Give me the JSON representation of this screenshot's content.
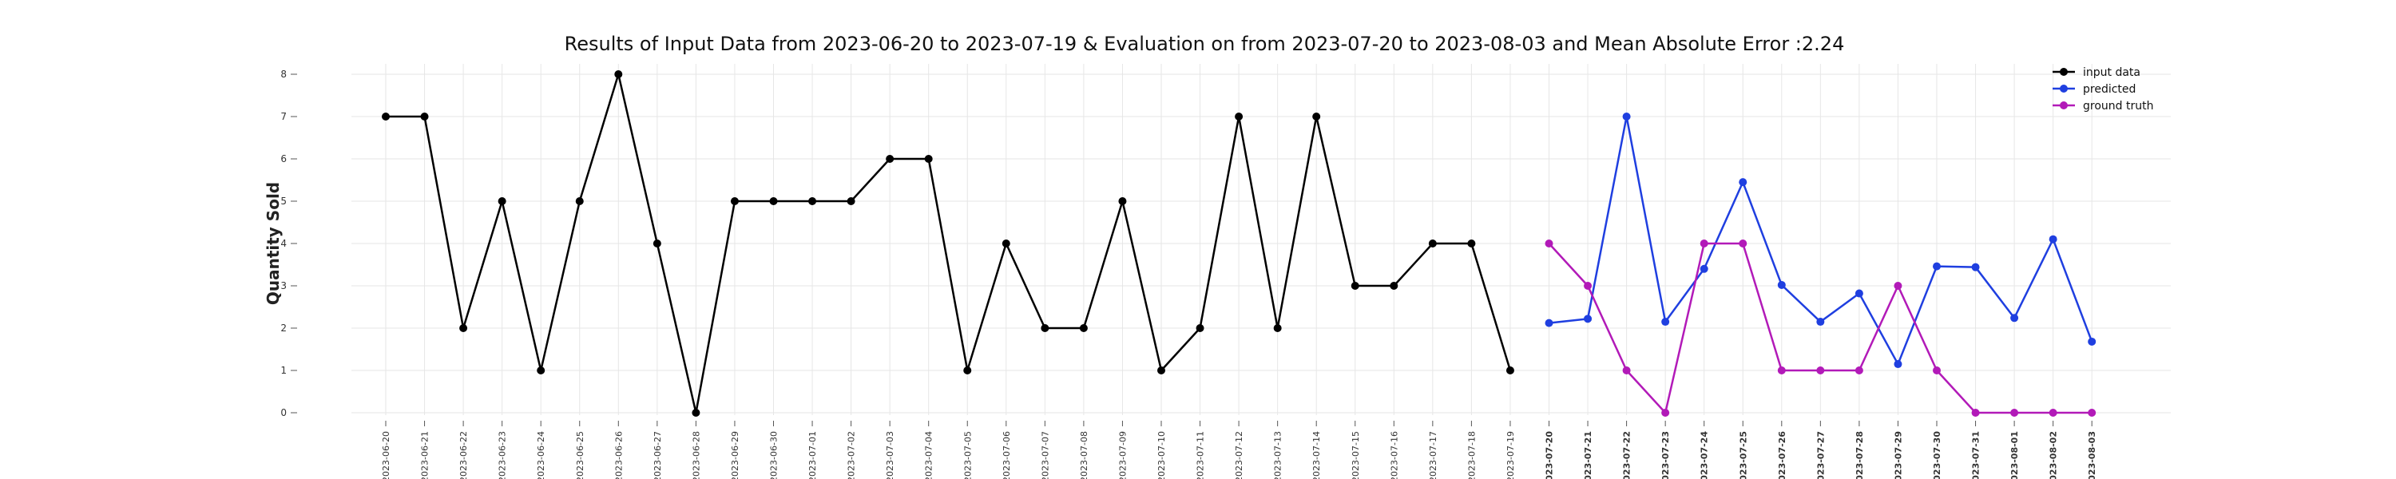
{
  "chart_data": {
    "type": "line",
    "title": "Results of Input Data from 2023-06-20 to 2023-07-19 & Evaluation on from 2023-07-20 to 2023-08-03 and Mean Absolute Error  :2.24",
    "xlabel": "",
    "ylabel": "Quantity Sold",
    "ylim": [
      0,
      8
    ],
    "yticks": [
      "0",
      "1",
      "2",
      "3",
      "4",
      "5",
      "6",
      "7",
      "8"
    ],
    "grid": true,
    "legend_position": "top-right",
    "x_labels": [
      "2023-06-20",
      "2023-06-21",
      "2023-06-22",
      "2023-06-23",
      "2023-06-24",
      "2023-06-25",
      "2023-06-26",
      "2023-06-27",
      "2023-06-28",
      "2023-06-29",
      "2023-06-30",
      "2023-07-01",
      "2023-07-02",
      "2023-07-03",
      "2023-07-04",
      "2023-07-05",
      "2023-07-06",
      "2023-07-07",
      "2023-07-08",
      "2023-07-09",
      "2023-07-10",
      "2023-07-11",
      "2023-07-12",
      "2023-07-13",
      "2023-07-14",
      "2023-07-15",
      "2023-07-16",
      "2023-07-17",
      "2023-07-18",
      "2023-07-19",
      "2023-07-20",
      "2023-07-21",
      "2023-07-22",
      "2023-07-23",
      "2023-07-24",
      "2023-07-25",
      "2023-07-26",
      "2023-07-27",
      "2023-07-28",
      "2023-07-29",
      "2023-07-30",
      "2023-07-31",
      "2023-08-01",
      "2023-08-02",
      "2023-08-03"
    ],
    "bold_from": "2023-07-20",
    "series": [
      {
        "name": "input data",
        "color": "#000000",
        "x": [
          "2023-06-20",
          "2023-06-21",
          "2023-06-22",
          "2023-06-23",
          "2023-06-24",
          "2023-06-25",
          "2023-06-26",
          "2023-06-27",
          "2023-06-28",
          "2023-06-29",
          "2023-06-30",
          "2023-07-01",
          "2023-07-02",
          "2023-07-03",
          "2023-07-04",
          "2023-07-05",
          "2023-07-06",
          "2023-07-07",
          "2023-07-08",
          "2023-07-09",
          "2023-07-10",
          "2023-07-11",
          "2023-07-12",
          "2023-07-13",
          "2023-07-14",
          "2023-07-15",
          "2023-07-16",
          "2023-07-17",
          "2023-07-18",
          "2023-07-19"
        ],
        "values": [
          7,
          7,
          2,
          5,
          1,
          5,
          8,
          4,
          0,
          5,
          5,
          5,
          5,
          6,
          6,
          1,
          4,
          2,
          2,
          5,
          1,
          2,
          7,
          2,
          7,
          3,
          3,
          4,
          4,
          1
        ]
      },
      {
        "name": "predicted",
        "color": "#1f3fe0",
        "x": [
          "2023-07-20",
          "2023-07-21",
          "2023-07-22",
          "2023-07-23",
          "2023-07-24",
          "2023-07-25",
          "2023-07-26",
          "2023-07-27",
          "2023-07-28",
          "2023-07-29",
          "2023-07-30",
          "2023-07-31",
          "2023-08-01",
          "2023-08-02",
          "2023-08-03"
        ],
        "values": [
          2.12,
          2.22,
          7.0,
          2.15,
          3.4,
          5.45,
          3.02,
          2.15,
          2.82,
          1.15,
          3.46,
          3.44,
          2.24,
          4.1,
          1.68
        ]
      },
      {
        "name": "ground truth",
        "color": "#b21ab8",
        "x": [
          "2023-07-20",
          "2023-07-21",
          "2023-07-22",
          "2023-07-23",
          "2023-07-24",
          "2023-07-25",
          "2023-07-26",
          "2023-07-27",
          "2023-07-28",
          "2023-07-29",
          "2023-07-30",
          "2023-07-31",
          "2023-08-01",
          "2023-08-02",
          "2023-08-03"
        ],
        "values": [
          4,
          3,
          1,
          0,
          4,
          4,
          1,
          1,
          1,
          3,
          1,
          0,
          0,
          0,
          0
        ]
      }
    ]
  }
}
